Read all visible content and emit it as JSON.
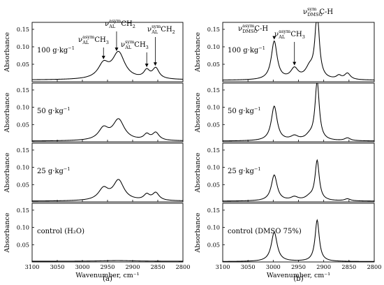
{
  "chart_data": [
    {
      "panel_label": "(a)",
      "type": "line",
      "xlabel": "Wavenumber, cm⁻¹",
      "xlim": [
        3100,
        2800
      ],
      "xticks": [
        3100,
        3050,
        3000,
        2950,
        2900,
        2850,
        2800
      ],
      "subplots": [
        {
          "ylabel": "Absorbance",
          "ylim": [
            0,
            0.17
          ],
          "yticks": [
            0.05,
            0.1,
            0.15
          ],
          "label_main": "100 g·kg",
          "label_sup": "−1",
          "annotations": [
            {
              "base": "ν",
              "sup": "asym",
              "sub": "AL",
              "rest": "CH",
              "rest_sub": "3",
              "x": 2958
            },
            {
              "base": "ν",
              "sup": "asym",
              "sub": "AL",
              "rest": "CH",
              "rest_sub": "2",
              "x": 2932
            },
            {
              "base": "ν",
              "sup": "sym",
              "sub": "AL",
              "rest": "CH",
              "rest_sub": "3",
              "x": 2872
            },
            {
              "base": "ν",
              "sup": "sym",
              "sub": "AL",
              "rest": "CH",
              "rest_sub": "2",
              "x": 2855
            }
          ],
          "series": [
            {
              "baseline": 0.005,
              "peaks": [
                [
                  2958,
                  0.04,
                  13
                ],
                [
                  2928,
                  0.075,
                  15
                ],
                [
                  2872,
                  0.022,
                  7
                ],
                [
                  2854,
                  0.03,
                  8
                ]
              ]
            }
          ]
        },
        {
          "ylabel": "Absorbance",
          "ylim": [
            0,
            0.17
          ],
          "yticks": [
            0.05,
            0.1,
            0.15
          ],
          "label_main": "50 g·kg",
          "label_sup": "−1",
          "series": [
            {
              "baseline": 0.002,
              "peaks": [
                [
                  2958,
                  0.033,
                  12
                ],
                [
                  2928,
                  0.06,
                  14
                ],
                [
                  2872,
                  0.016,
                  7
                ],
                [
                  2854,
                  0.022,
                  8
                ]
              ]
            }
          ]
        },
        {
          "ylabel": "Absorbance",
          "ylim": [
            0,
            0.17
          ],
          "yticks": [
            0.05,
            0.1,
            0.15
          ],
          "label_main": "25 g·kg",
          "label_sup": "−1",
          "series": [
            {
              "baseline": 0.002,
              "peaks": [
                [
                  2958,
                  0.033,
                  12
                ],
                [
                  2928,
                  0.058,
                  13
                ],
                [
                  2872,
                  0.016,
                  7
                ],
                [
                  2854,
                  0.022,
                  8
                ]
              ]
            }
          ]
        },
        {
          "ylabel": "Absorbance",
          "ylim": [
            0,
            0.17
          ],
          "yticks": [
            0.05,
            0.1,
            0.15
          ],
          "label_main": "control (H₂O)",
          "label_sup": "",
          "series": [
            {
              "baseline": 0.002,
              "peaks": [
                [
                  2930,
                  0.002,
                  40
                ]
              ]
            }
          ]
        }
      ]
    },
    {
      "panel_label": "(b)",
      "type": "line",
      "xlabel": "Wavenumber, cm⁻¹",
      "xlim": [
        3100,
        2800
      ],
      "xticks": [
        3100,
        3050,
        3000,
        2950,
        2900,
        2850,
        2800
      ],
      "subplots": [
        {
          "ylabel": "Absorbance",
          "ylim": [
            0,
            0.17
          ],
          "yticks": [
            0.05,
            0.1,
            0.15
          ],
          "label_main": "100 g·kg",
          "label_sup": "−1",
          "annotations": [
            {
              "base": "ν",
              "sup": "asym",
              "sub": "DMSO",
              "rest": "C-H",
              "rest_sub": "",
              "x": 2998
            },
            {
              "base": "ν",
              "sup": "asym",
              "sub": "AL",
              "rest": "CH",
              "rest_sub": "3",
              "x": 2958
            },
            {
              "base": "ν",
              "sup": "sym",
              "sub": "DMSO",
              "rest": "C-H",
              "rest_sub": "",
              "x": 2913
            }
          ],
          "series": [
            {
              "baseline": 0.004,
              "peaks": [
                [
                  2998,
                  0.11,
                  7
                ],
                [
                  2958,
                  0.03,
                  9
                ],
                [
                  2928,
                  0.03,
                  10
                ],
                [
                  2913,
                  0.19,
                  5
                ],
                [
                  2870,
                  0.01,
                  6
                ],
                [
                  2853,
                  0.018,
                  7
                ]
              ]
            }
          ]
        },
        {
          "ylabel": "Absorbance",
          "ylim": [
            0,
            0.17
          ],
          "yticks": [
            0.05,
            0.1,
            0.15
          ],
          "label_main": "50 g·kg",
          "label_sup": "−1",
          "series": [
            {
              "baseline": 0.002,
              "peaks": [
                [
                  2998,
                  0.1,
                  7
                ],
                [
                  2958,
                  0.012,
                  9
                ],
                [
                  2928,
                  0.012,
                  10
                ],
                [
                  2913,
                  0.17,
                  5
                ],
                [
                  2853,
                  0.008,
                  7
                ]
              ]
            }
          ]
        },
        {
          "ylabel": "Absorbance",
          "ylim": [
            0,
            0.17
          ],
          "yticks": [
            0.05,
            0.1,
            0.15
          ],
          "label_main": "25 g·kg",
          "label_sup": "−1",
          "series": [
            {
              "baseline": 0.002,
              "peaks": [
                [
                  2998,
                  0.075,
                  7
                ],
                [
                  2958,
                  0.01,
                  9
                ],
                [
                  2928,
                  0.01,
                  10
                ],
                [
                  2913,
                  0.115,
                  5
                ],
                [
                  2853,
                  0.006,
                  7
                ]
              ]
            }
          ]
        },
        {
          "ylabel": "Absorbance",
          "ylim": [
            0,
            0.17
          ],
          "yticks": [
            0.05,
            0.1,
            0.15
          ],
          "label_main": "control (DMSO 75%)",
          "label_sup": "",
          "series": [
            {
              "baseline": 0.001,
              "peaks": [
                [
                  2998,
                  0.085,
                  7
                ],
                [
                  2913,
                  0.12,
                  5
                ]
              ]
            }
          ]
        }
      ]
    }
  ]
}
